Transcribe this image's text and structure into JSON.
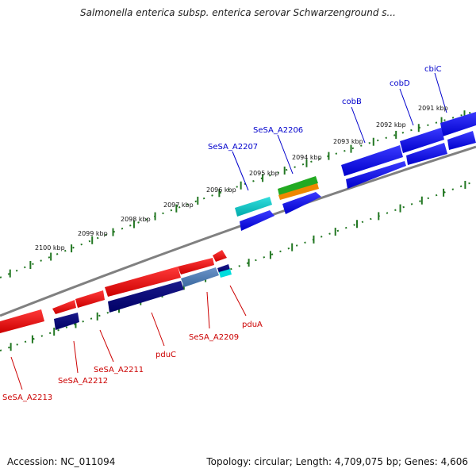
{
  "title": "Salmonella enterica subsp. enterica serovar Schwarzenground s...",
  "footer": {
    "accession": "Accession: NC_011094",
    "topology": "Topology: circular; Length: 4,709,075 bp; Genes: 4,606"
  },
  "colors": {
    "forward_gene": "#0000ee",
    "reverse_gene": "#ee0000",
    "forward_label": "#0000cc",
    "reverse_label": "#cc0000",
    "tick": "#227722",
    "backbone": "#808080"
  },
  "ticks": [
    {
      "label": "2091 kbp"
    },
    {
      "label": "2092 kbp"
    },
    {
      "label": "2093 kbp"
    },
    {
      "label": "2094 kbp"
    },
    {
      "label": "2095 kbp"
    },
    {
      "label": "2096 kbp"
    },
    {
      "label": "2097 kbp"
    },
    {
      "label": "2098 kbp"
    },
    {
      "label": "2099 kbp"
    },
    {
      "label": "2100 kbp"
    }
  ],
  "genes_forward": [
    {
      "label": "cbiC"
    },
    {
      "label": "cobD"
    },
    {
      "label": "cobB"
    },
    {
      "label": "SeSA_A2206"
    },
    {
      "label": "SeSA_A2207"
    }
  ],
  "genes_reverse": [
    {
      "label": "pduA"
    },
    {
      "label": "SeSA_A2209"
    },
    {
      "label": "pduC"
    },
    {
      "label": "SeSA_A2211"
    },
    {
      "label": "SeSA_A2212"
    },
    {
      "label": "SeSA_A2213"
    }
  ]
}
